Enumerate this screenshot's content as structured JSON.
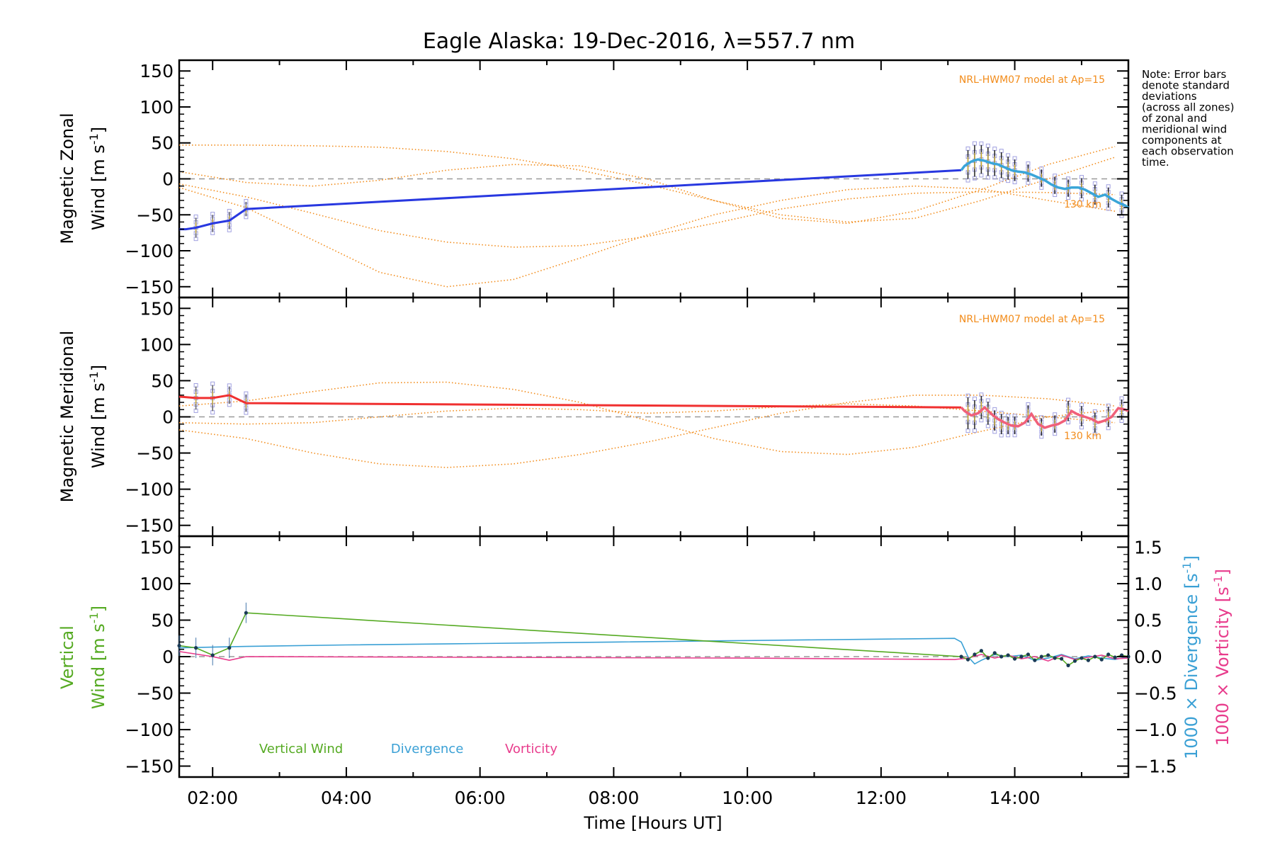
{
  "title": "Eagle Alaska: 19-Dec-2016, λ=557.7 nm",
  "note_lines": [
    "Note: Error bars",
    "denote standard",
    "deviations",
    "(across all zones)",
    "of zonal and",
    "meridional wind",
    "components at",
    "each observation",
    "time."
  ],
  "xaxis": {
    "label": "Time [Hours UT]",
    "ticks": [
      "02:00",
      "04:00",
      "06:00",
      "08:00",
      "10:00",
      "12:00",
      "14:00"
    ],
    "tick_values": [
      2,
      4,
      6,
      8,
      10,
      12,
      14
    ],
    "range": [
      1.5,
      15.7
    ]
  },
  "colors": {
    "zonal": "#2838e0",
    "zonal_recent": "#3aa5d8",
    "meridional": "#f03030",
    "meridional_recent": "#f0607a",
    "vertical": "#55aa22",
    "divergence": "#3aa0d5",
    "vorticity": "#e83c8c",
    "model": "#f28c1b",
    "samples": "#a0a0e0"
  },
  "panels": {
    "zonal": {
      "ylabel_line1": "Magnetic Zonal",
      "ylabel_line2": "Wind [m s",
      "ylabel_sup": "-1",
      "ylabel_close": "]",
      "yticks": [
        "150",
        "100",
        "50",
        "0",
        "−50",
        "−100",
        "−150"
      ],
      "model_label": "NRL-HWM07 model at Ap=15",
      "model_height_label": "130 km"
    },
    "meridional": {
      "ylabel_line1": "Magnetic Meridional",
      "ylabel_line2": "Wind [m s",
      "ylabel_sup": "-1",
      "ylabel_close": "]",
      "yticks": [
        "150",
        "100",
        "50",
        "0",
        "−50",
        "−100",
        "−150"
      ],
      "model_label": "NRL-HWM07 model at Ap=15",
      "model_height_label": "130 km"
    },
    "vertical": {
      "ylabel_line1": "Vertical",
      "ylabel_line2": "Wind [m s",
      "ylabel_sup": "-1",
      "ylabel_close": "]",
      "yticks": [
        "150",
        "100",
        "50",
        "0",
        "−50",
        "−100",
        "−150"
      ],
      "right_ticks": [
        "1.5",
        "1.0",
        "0.5",
        "0.0",
        "−0.5",
        "−1.0",
        "−1.5"
      ],
      "right_label1": "1000 × Divergence [s",
      "right_label2": "1000 × Vorticity [s",
      "right_sup": "-1",
      "right_close": "]",
      "legend": [
        "Vertical Wind",
        "Divergence",
        "Vorticity"
      ]
    }
  },
  "chart_data": [
    {
      "type": "line",
      "panel": "zonal",
      "xlabel": "Time [Hours UT]",
      "ylabel": "Magnetic Zonal Wind [m s-1]",
      "ylim": [
        -165,
        165
      ],
      "xlim": [
        1.5,
        15.7
      ],
      "grid": false,
      "series": [
        {
          "x": [
            1.5,
            1.6,
            1.75,
            2.0,
            2.25,
            2.5,
            13.2,
            13.25,
            13.35,
            13.45,
            13.55,
            13.65,
            13.75,
            13.85,
            13.95,
            14.05,
            14.15,
            14.25,
            14.35,
            14.45,
            14.55,
            14.65,
            14.75,
            14.85,
            14.95,
            15.05,
            15.15,
            15.25,
            15.35,
            15.45,
            15.55,
            15.65,
            15.7
          ],
          "y": [
            -70,
            -70,
            -68,
            -62,
            -58,
            -42,
            12,
            18,
            24,
            27,
            25,
            22,
            20,
            16,
            12,
            10,
            9,
            6,
            2,
            -2,
            -8,
            -12,
            -14,
            -12,
            -12,
            -15,
            -20,
            -25,
            -22,
            -28,
            -33,
            -37,
            -40
          ]
        }
      ],
      "error_bars": {
        "x": [
          1.75,
          2.0,
          2.25,
          2.5,
          13.3,
          13.4,
          13.5,
          13.6,
          13.7,
          13.8,
          13.9,
          14.0,
          14.2,
          14.4,
          14.6,
          14.8,
          15.0,
          15.2,
          15.4,
          15.6
        ],
        "y": [
          -68,
          -62,
          -58,
          -42,
          20,
          25,
          27,
          24,
          22,
          19,
          15,
          12,
          8,
          1,
          -9,
          -13,
          -13,
          -22,
          -26,
          -36
        ],
        "err": [
          14,
          12,
          12,
          10,
          20,
          22,
          20,
          20,
          18,
          18,
          16,
          15,
          12,
          12,
          12,
          12,
          14,
          14,
          14,
          14
        ]
      },
      "model_curves": [
        {
          "x": [
            1.5,
            2.5,
            3.5,
            4.5,
            5.5,
            6.5,
            7.5,
            8.5,
            9.5,
            10.5,
            11.5,
            12.5,
            13.5,
            14.5,
            15.5
          ],
          "y": [
            -7,
            -25,
            -48,
            -72,
            -88,
            -95,
            -93,
            -80,
            -62,
            -42,
            -28,
            -20,
            -18,
            -19,
            -22
          ]
        },
        {
          "x": [
            1.5,
            2.5,
            3.5,
            4.5,
            5.5,
            6.5,
            7.5,
            8.5,
            9.5,
            10.5,
            11.5,
            12.5,
            13.5,
            14.5,
            15.5
          ],
          "y": [
            -12,
            -40,
            -85,
            -130,
            -150,
            -140,
            -110,
            -78,
            -50,
            -30,
            -15,
            -10,
            -14,
            -30,
            -45
          ]
        },
        {
          "x": [
            1.5,
            2.5,
            3.5,
            4.5,
            5.5,
            6.5,
            7.5,
            8.5,
            9.5,
            10.5,
            11.5,
            12.5,
            13.5,
            14.5,
            15.5
          ],
          "y": [
            47,
            47,
            46,
            44,
            38,
            28,
            12,
            -8,
            -30,
            -50,
            -60,
            -55,
            -30,
            0,
            30
          ]
        },
        {
          "x": [
            1.5,
            2.5,
            3.5,
            4.5,
            5.5,
            6.5,
            7.5,
            8.5,
            9.5,
            10.5,
            11.5,
            12.5,
            13.5,
            14.5,
            15.5
          ],
          "y": [
            10,
            -5,
            -10,
            -2,
            12,
            20,
            18,
            0,
            -30,
            -55,
            -62,
            -45,
            -15,
            20,
            45
          ]
        }
      ]
    },
    {
      "type": "line",
      "panel": "meridional",
      "xlabel": "Time [Hours UT]",
      "ylabel": "Magnetic Meridional Wind [m s-1]",
      "ylim": [
        -165,
        165
      ],
      "xlim": [
        1.5,
        15.7
      ],
      "grid": false,
      "series": [
        {
          "x": [
            1.5,
            1.75,
            2.0,
            2.25,
            2.5,
            13.2,
            13.25,
            13.35,
            13.45,
            13.55,
            13.65,
            13.75,
            13.85,
            13.95,
            14.05,
            14.15,
            14.25,
            14.35,
            14.45,
            14.55,
            14.65,
            14.75,
            14.85,
            14.95,
            15.05,
            15.15,
            15.25,
            15.35,
            15.45,
            15.55,
            15.65,
            15.7
          ],
          "y": [
            28,
            26,
            26,
            30,
            19,
            13,
            8,
            2,
            5,
            13,
            4,
            -3,
            -8,
            -12,
            -13,
            -8,
            4,
            -10,
            -15,
            -12,
            -10,
            -5,
            8,
            3,
            0,
            -3,
            -8,
            -5,
            0,
            12,
            10,
            8
          ]
        }
      ],
      "error_bars": {
        "x": [
          1.75,
          2.0,
          2.25,
          2.5,
          13.3,
          13.4,
          13.5,
          13.6,
          13.7,
          13.8,
          13.9,
          14.0,
          14.2,
          14.4,
          14.6,
          14.8,
          15.0,
          15.2,
          15.4,
          15.6
        ],
        "y": [
          26,
          26,
          30,
          19,
          5,
          3,
          13,
          5,
          -5,
          -10,
          -12,
          -12,
          4,
          -14,
          -10,
          8,
          1,
          -8,
          0,
          10
        ],
        "err": [
          16,
          18,
          12,
          12,
          22,
          20,
          16,
          16,
          14,
          14,
          12,
          12,
          12,
          12,
          12,
          14,
          14,
          14,
          14,
          14
        ]
      },
      "model_curves": [
        {
          "x": [
            1.5,
            2.5,
            3.5,
            4.5,
            5.5,
            6.5,
            7.5,
            8.5,
            9.5,
            10.5,
            11.5,
            12.5,
            13.5,
            14.5,
            15.5
          ],
          "y": [
            -18,
            -30,
            -50,
            -65,
            -70,
            -65,
            -52,
            -35,
            -15,
            5,
            20,
            30,
            30,
            25,
            15
          ]
        },
        {
          "x": [
            1.5,
            2.5,
            3.5,
            4.5,
            5.5,
            6.5,
            7.5,
            8.5,
            9.5,
            10.5,
            11.5,
            12.5,
            13.5,
            14.5,
            15.5
          ],
          "y": [
            15,
            22,
            35,
            47,
            48,
            38,
            20,
            -5,
            -30,
            -48,
            -52,
            -42,
            -20,
            0,
            10
          ]
        },
        {
          "x": [
            1.5,
            2.5,
            3.5,
            4.5,
            5.5,
            6.5,
            7.5,
            8.5,
            9.5,
            10.5,
            11.5,
            12.5,
            13.5,
            14.5,
            15.5
          ],
          "y": [
            -8,
            -10,
            -8,
            0,
            8,
            12,
            10,
            5,
            8,
            14,
            18,
            15,
            8,
            0,
            -8
          ]
        }
      ]
    },
    {
      "type": "line",
      "panel": "vertical",
      "xlabel": "Time [Hours UT]",
      "ylabel": "Vertical Wind [m s-1]",
      "ylim": [
        -165,
        165
      ],
      "y2lim": [
        -1.65,
        1.65
      ],
      "xlim": [
        1.5,
        15.7
      ],
      "grid": false,
      "series": [
        {
          "name": "Vertical Wind",
          "axis": "left",
          "x": [
            1.5,
            1.75,
            2.0,
            2.25,
            2.5,
            13.2,
            13.3,
            13.4,
            13.5,
            13.6,
            13.7,
            13.8,
            13.9,
            14.0,
            14.1,
            14.2,
            14.3,
            14.4,
            14.5,
            14.6,
            14.7,
            14.8,
            14.9,
            15.0,
            15.1,
            15.2,
            15.3,
            15.4,
            15.5,
            15.6,
            15.7
          ],
          "y": [
            15,
            12,
            2,
            12,
            60,
            0,
            -4,
            3,
            8,
            -2,
            5,
            0,
            2,
            -3,
            0,
            3,
            -5,
            0,
            2,
            -2,
            -3,
            -12,
            -6,
            -2,
            -5,
            0,
            -4,
            3,
            -1,
            2,
            0
          ]
        },
        {
          "name": "Divergence",
          "axis": "right",
          "x": [
            1.5,
            2.0,
            2.5,
            4.0,
            6.0,
            8.0,
            10.0,
            12.0,
            13.1,
            13.2,
            13.3,
            13.4,
            13.5,
            13.7,
            13.9,
            14.1,
            14.3,
            14.5,
            14.7,
            14.9,
            15.1,
            15.3,
            15.5,
            15.7
          ],
          "y": [
            0.12,
            0.13,
            0.14,
            0.16,
            0.18,
            0.2,
            0.22,
            0.24,
            0.25,
            0.2,
            0.0,
            -0.1,
            -0.05,
            0.03,
            0.0,
            0.02,
            -0.05,
            -0.02,
            0.03,
            -0.03,
            0.01,
            -0.02,
            -0.04,
            0.0
          ]
        },
        {
          "name": "Vorticity",
          "axis": "right",
          "x": [
            1.5,
            2.0,
            2.25,
            2.5,
            6.0,
            10.0,
            13.1,
            13.3,
            13.5,
            13.7,
            13.9,
            14.1,
            14.3,
            14.5,
            14.7,
            14.9,
            15.1,
            15.3,
            15.5,
            15.7
          ],
          "y": [
            0.07,
            0.0,
            -0.05,
            0.0,
            -0.01,
            -0.02,
            -0.04,
            -0.02,
            0.03,
            -0.02,
            0.02,
            -0.03,
            0.0,
            -0.06,
            0.02,
            -0.04,
            -0.01,
            0.02,
            -0.03,
            -0.02
          ]
        }
      ]
    }
  ]
}
